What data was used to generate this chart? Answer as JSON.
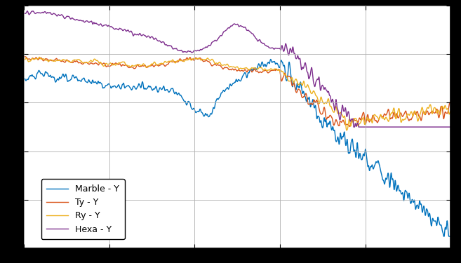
{
  "title": "",
  "xlabel": "",
  "ylabel": "",
  "xlim": [
    0,
    500
  ],
  "ylim": [
    -80,
    20
  ],
  "grid": true,
  "background_color": "#ffffff",
  "plot_bg_color": "#ffffff",
  "grid_color": "#b0b0b0",
  "legend_labels": [
    "Marble - Y",
    "Ty - Y",
    "Ry - Y",
    "Hexa - Y"
  ],
  "colors": {
    "marble": "#0072BD",
    "ty": "#D95319",
    "ry": "#EDB120",
    "hexa": "#7E2F8E"
  },
  "linewidth": 1.0,
  "freq_max": 500,
  "num_points": 3000
}
